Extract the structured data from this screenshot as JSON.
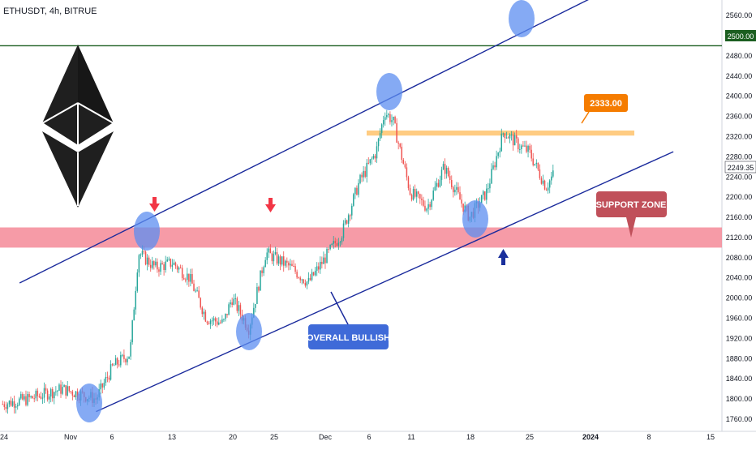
{
  "header": {
    "symbol": "ETHUSDT, 4h, BITRUE"
  },
  "colors": {
    "up": "#26a69a",
    "down": "#ef5350",
    "channel": "#1a2a9c",
    "resistance_line": "#1b5e20",
    "support_zone": "#f48a98",
    "resistance_zone": "#ffb74d",
    "price_tag_orange": "#f57c00",
    "callout_red": "#c0505a",
    "callout_blue": "#3f6ad8",
    "touch_circle": "#5c8df0"
  },
  "annotations": {
    "price_tag": "2333.00",
    "support_zone_label": "SUPPORT ZONE",
    "overall_label": "OVERALL BULLISH",
    "level_label": "2500.00",
    "last_price_label": "2249.35"
  },
  "chart_data": {
    "type": "candlestick",
    "title": "ETHUSDT, 4h, BITRUE",
    "ylim": [
      1750,
      2570
    ],
    "y_ticks": [
      "2560.00",
      "2520.00",
      "2480.00",
      "2440.00",
      "2400.00",
      "2360.00",
      "2320.00",
      "2280.00",
      "2240.00",
      "2200.00",
      "2160.00",
      "2120.00",
      "2080.00",
      "2040.00",
      "2000.00",
      "1960.00",
      "1920.00",
      "1880.00",
      "1840.00",
      "1800.00",
      "1760.00"
    ],
    "x_ticks": [
      "24",
      "Nov",
      "6",
      "13",
      "20",
      "25",
      "Dec",
      "6",
      "11",
      "18",
      "25",
      "2024",
      "8",
      "15"
    ],
    "series": [
      {
        "name": "ETHUSDT",
        "close_path": [
          [
            "Oct 24",
            1790
          ],
          [
            "Oct 27",
            1800
          ],
          [
            "Oct 31",
            1820
          ],
          [
            "Nov 4",
            1800
          ],
          [
            "Nov 6",
            1865
          ],
          [
            "Nov 8",
            1890
          ],
          [
            "Nov 9",
            2090
          ],
          [
            "Nov 11",
            2060
          ],
          [
            "Nov 13",
            2070
          ],
          [
            "Nov 15",
            2040
          ],
          [
            "Nov 17",
            1960
          ],
          [
            "Nov 19",
            1950
          ],
          [
            "Nov 20",
            2000
          ],
          [
            "Nov 22",
            1940
          ],
          [
            "Nov 24",
            2090
          ],
          [
            "Nov 25",
            2080
          ],
          [
            "Nov 27",
            2060
          ],
          [
            "Nov 29",
            2030
          ],
          [
            "Dec 1",
            2080
          ],
          [
            "Dec 3",
            2130
          ],
          [
            "Dec 5",
            2230
          ],
          [
            "Dec 7",
            2290
          ],
          [
            "Dec 8",
            2370
          ],
          [
            "Dec 9",
            2350
          ],
          [
            "Dec 11",
            2210
          ],
          [
            "Dec 13",
            2180
          ],
          [
            "Dec 15",
            2260
          ],
          [
            "Dec 17",
            2190
          ],
          [
            "Dec 18",
            2160
          ],
          [
            "Dec 20",
            2210
          ],
          [
            "Dec 22",
            2330
          ],
          [
            "Dec 24",
            2300
          ],
          [
            "Dec 25",
            2290
          ],
          [
            "Dec 27",
            2220
          ],
          [
            "Dec 28",
            2249.35
          ]
        ]
      }
    ],
    "horizontal_lines": [
      {
        "value": 2500
      }
    ],
    "zones": [
      {
        "name": "support",
        "from": 2100,
        "to": 2140
      },
      {
        "name": "resistance",
        "from": 2322,
        "to": 2332
      }
    ],
    "channel": {
      "lower": [
        [
          "Nov 4",
          1775
        ],
        [
          "Jan 11",
          2290
        ]
      ],
      "upper": [
        [
          "Oct 26",
          2030
        ],
        [
          "Jan 2",
          2600
        ]
      ]
    },
    "legend": "none",
    "grid": false
  }
}
